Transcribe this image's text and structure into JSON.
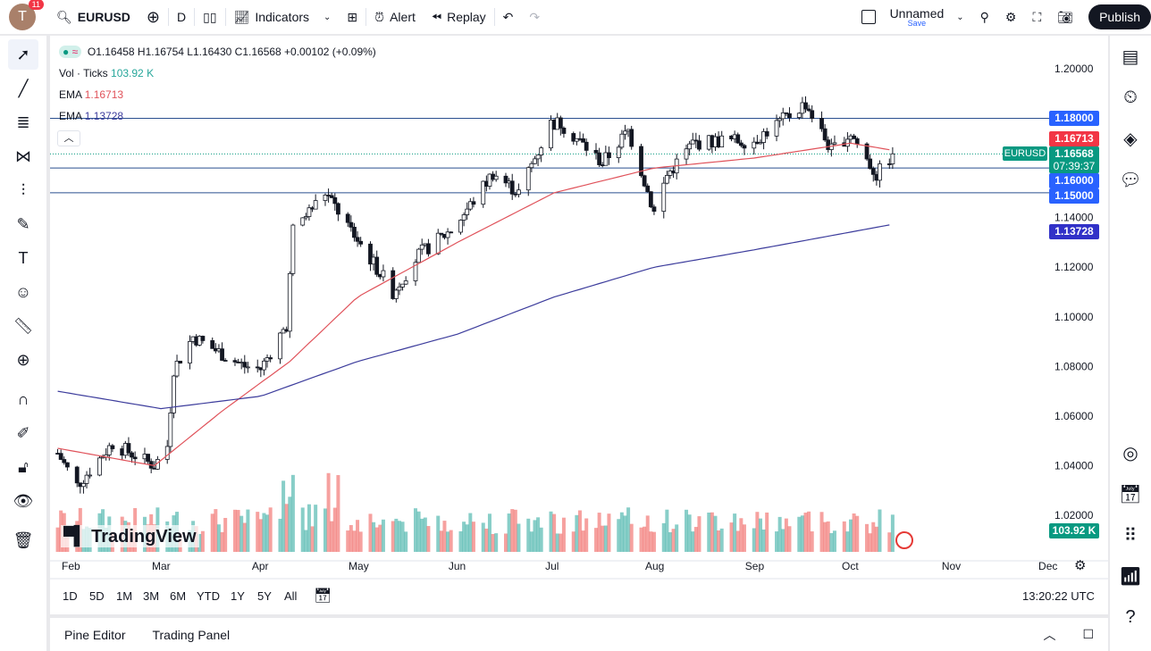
{
  "topbar": {
    "avatar_letter": "T",
    "notifications": "11",
    "symbol": "EURUSD",
    "interval": "D",
    "indicators": "Indicators",
    "alert": "Alert",
    "replay": "Replay",
    "layout_name": "Unnamed",
    "save": "Save",
    "publish": "Publish"
  },
  "legend": {
    "ohlc": "O1.16458 H1.16754 L1.16430 C1.16568 +0.00102 (+0.09%)",
    "vol_label": "Vol · Ticks",
    "vol_value": "103.92 K",
    "ema1_label": "EMA",
    "ema1_value": "1.16713",
    "ema2_label": "EMA",
    "ema2_value": "1.13728"
  },
  "colors": {
    "up": "#26a69a",
    "down": "#ef5350",
    "ema_fast": "#e0525a",
    "ema_slow": "#3c3c9c",
    "hline": "#2a4f8f",
    "label_blue": "#2962ff",
    "label_red": "#f23645",
    "label_green": "#089981"
  },
  "chart_data": {
    "type": "candlestick",
    "symbol": "EURUSD",
    "interval": "1D",
    "y_ticks": [
      "1.20000",
      "1.18000",
      "1.16000",
      "1.14000",
      "1.12000",
      "1.10000",
      "1.08000",
      "1.06000",
      "1.04000",
      "1.02000"
    ],
    "ylim": [
      1.02,
      1.2
    ],
    "x_ticks": [
      "Feb",
      "Mar",
      "Apr",
      "May",
      "Jun",
      "Jul",
      "Aug",
      "Sep",
      "Oct",
      "Nov",
      "Dec"
    ],
    "close_keypoints": [
      [
        "2025-01-28",
        1.045
      ],
      [
        "2025-02-03",
        1.032
      ],
      [
        "2025-02-14",
        1.049
      ],
      [
        "2025-02-27",
        1.04
      ],
      [
        "2025-03-03",
        1.048
      ],
      [
        "2025-03-05",
        1.079
      ],
      [
        "2025-03-11",
        1.092
      ],
      [
        "2025-03-20",
        1.085
      ],
      [
        "2025-03-27",
        1.08
      ],
      [
        "2025-04-01",
        1.079
      ],
      [
        "2025-04-09",
        1.097
      ],
      [
        "2025-04-11",
        1.135
      ],
      [
        "2025-04-21",
        1.15
      ],
      [
        "2025-04-30",
        1.133
      ],
      [
        "2025-05-12",
        1.11
      ],
      [
        "2025-05-20",
        1.125
      ],
      [
        "2025-05-30",
        1.135
      ],
      [
        "2025-06-05",
        1.145
      ],
      [
        "2025-06-12",
        1.158
      ],
      [
        "2025-06-20",
        1.15
      ],
      [
        "2025-06-30",
        1.178
      ],
      [
        "2025-07-03",
        1.178
      ],
      [
        "2025-07-16",
        1.162
      ],
      [
        "2025-07-24",
        1.175
      ],
      [
        "2025-07-28",
        1.159
      ],
      [
        "2025-08-01",
        1.142
      ],
      [
        "2025-08-05",
        1.157
      ],
      [
        "2025-08-13",
        1.17
      ],
      [
        "2025-08-22",
        1.171
      ],
      [
        "2025-09-01",
        1.171
      ],
      [
        "2025-09-17",
        1.186
      ],
      [
        "2025-09-25",
        1.167
      ],
      [
        "2025-10-01",
        1.174
      ],
      [
        "2025-10-09",
        1.157
      ],
      [
        "2025-10-14",
        1.1657
      ]
    ],
    "ema_fast_keypoints": [
      [
        "2025-01-28",
        1.047
      ],
      [
        "2025-02-27",
        1.04
      ],
      [
        "2025-03-20",
        1.062
      ],
      [
        "2025-04-10",
        1.082
      ],
      [
        "2025-05-01",
        1.108
      ],
      [
        "2025-06-01",
        1.13
      ],
      [
        "2025-07-01",
        1.15
      ],
      [
        "2025-08-01",
        1.16
      ],
      [
        "2025-09-01",
        1.164
      ],
      [
        "2025-10-01",
        1.17
      ],
      [
        "2025-10-14",
        1.16713
      ]
    ],
    "ema_slow_keypoints": [
      [
        "2025-01-28",
        1.07
      ],
      [
        "2025-03-01",
        1.063
      ],
      [
        "2025-04-01",
        1.068
      ],
      [
        "2025-05-01",
        1.082
      ],
      [
        "2025-06-01",
        1.093
      ],
      [
        "2025-07-01",
        1.108
      ],
      [
        "2025-08-01",
        1.12
      ],
      [
        "2025-09-01",
        1.127
      ],
      [
        "2025-10-14",
        1.13728
      ]
    ],
    "horizontal_lines": [
      1.18,
      1.16,
      1.15
    ],
    "price_labels": {
      "h1": "1.18000",
      "ema_fast": "1.16713",
      "last": "1.16568",
      "countdown": "07:39:37",
      "h2": "1.16000",
      "h3": "1.15000",
      "ema_slow": "1.13728",
      "volume": "103.92 K",
      "symbol_tag": "EURUSD"
    }
  },
  "ranges": [
    "1D",
    "5D",
    "1M",
    "3M",
    "6M",
    "YTD",
    "1Y",
    "5Y",
    "All"
  ],
  "clock": "13:20:22 UTC",
  "bottom": {
    "pine": "Pine Editor",
    "trading": "Trading Panel"
  },
  "watermark": "TradingView"
}
